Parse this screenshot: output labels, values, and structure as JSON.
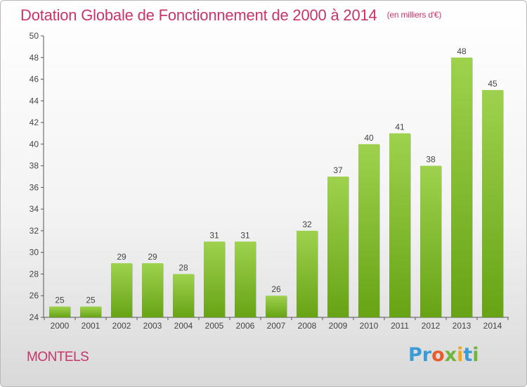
{
  "chart_data": {
    "type": "bar",
    "title": "Dotation Globale de Fonctionnement de 2000 à 2014",
    "subtitle": "(en milliers d'€)",
    "categories": [
      "2000",
      "2001",
      "2002",
      "2003",
      "2004",
      "2005",
      "2006",
      "2007",
      "2008",
      "2009",
      "2010",
      "2011",
      "2012",
      "2013",
      "2014"
    ],
    "values": [
      25,
      25,
      29,
      29,
      28,
      31,
      31,
      26,
      32,
      37,
      40,
      41,
      38,
      48,
      45
    ],
    "ylim": [
      24,
      50
    ],
    "yticks": [
      24,
      26,
      28,
      30,
      32,
      34,
      36,
      38,
      40,
      42,
      44,
      46,
      48,
      50
    ],
    "xlabel": "",
    "ylabel": "",
    "grid": "none",
    "data_labels": true,
    "bar_color_top": "#9ed24e",
    "bar_color_bottom": "#67a315"
  },
  "footer": {
    "commune": "MONTELS",
    "logo_letters": [
      "Pr",
      "o",
      "x",
      "i",
      "t",
      "i"
    ]
  }
}
